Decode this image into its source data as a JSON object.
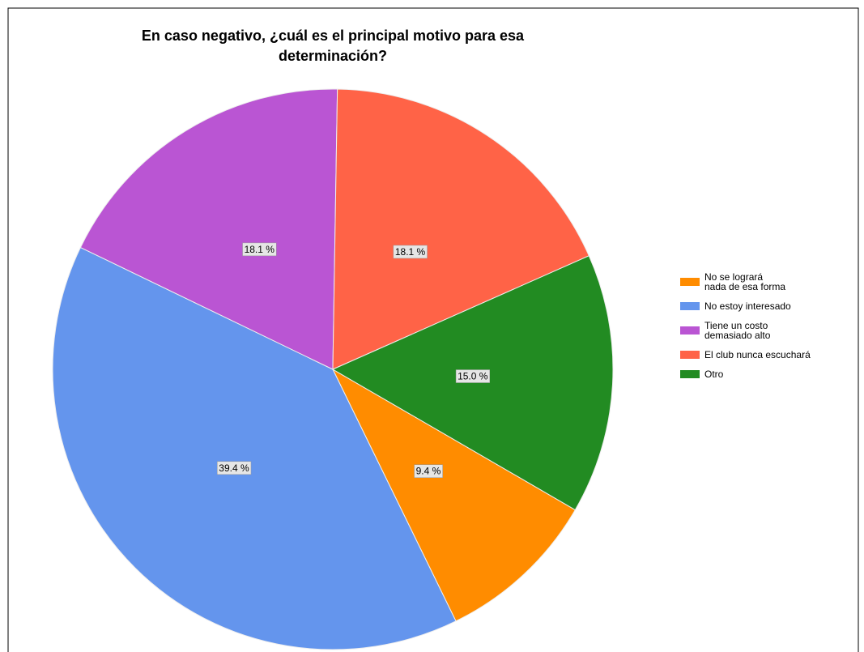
{
  "chart_data": {
    "type": "pie",
    "title": "En caso negativo, ¿cuál es el principal motivo para esa determinación?",
    "categories": [
      "No se logrará\nnada de esa forma",
      "No estoy interesado",
      "Tiene un costo\ndemasiado alto",
      "El club nunca escuchará",
      "Otro"
    ],
    "values": [
      9.4,
      39.4,
      18.1,
      18.1,
      15.0
    ],
    "value_labels": [
      "9.4 %",
      "39.4 %",
      "18.1 %",
      "18.1 %",
      "15.0 %"
    ],
    "colors": [
      "#ff8c00",
      "#6495ed",
      "#ba55d3",
      "#ff6347",
      "#228b22"
    ],
    "legend": "right"
  }
}
